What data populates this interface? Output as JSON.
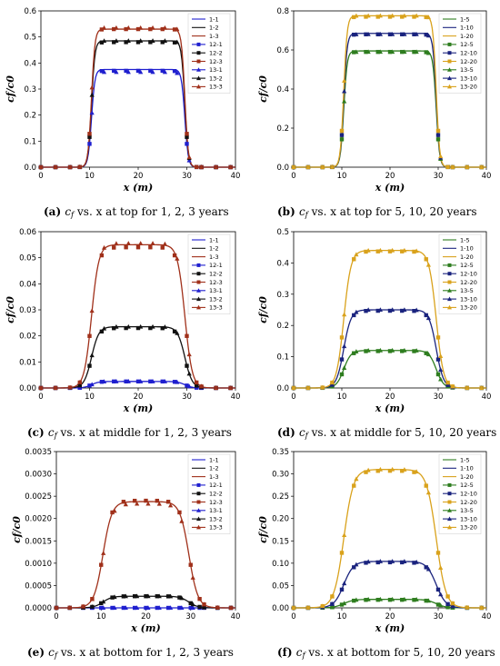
{
  "chart_data": [
    {
      "type": "line",
      "caption": {
        "tag": "(a)",
        "body": "c",
        "sub": "f",
        "rest": " vs. x at top for 1, 2, 3 years"
      },
      "xlabel": "x (m)",
      "ylabel": "cf/c0",
      "xlim": [
        0,
        40
      ],
      "ylim": [
        0,
        0.6
      ],
      "xticks": [
        "0",
        "10",
        "20",
        "30",
        "40"
      ],
      "yticks": [
        "0.0",
        "0.1",
        "0.2",
        "0.3",
        "0.4",
        "0.5",
        "0.6"
      ],
      "legend_position": "top-right",
      "plateau_levels": [
        0.37,
        0.485,
        0.53
      ],
      "series": [
        {
          "name": "1-1",
          "color": "#1f1fcf",
          "kind": "line",
          "level": 0.375
        },
        {
          "name": "1-2",
          "color": "#111111",
          "kind": "line",
          "level": 0.485
        },
        {
          "name": "1-3",
          "color": "#a0301a",
          "kind": "line",
          "level": 0.53
        },
        {
          "name": "12-1",
          "color": "#1f1fcf",
          "kind": "square",
          "level": 0.37
        },
        {
          "name": "12-2",
          "color": "#111111",
          "kind": "square",
          "level": 0.48
        },
        {
          "name": "12-3",
          "color": "#a0301a",
          "kind": "square",
          "level": 0.53
        },
        {
          "name": "13-1",
          "color": "#1f1fcf",
          "kind": "triangle",
          "level": 0.365
        },
        {
          "name": "13-2",
          "color": "#111111",
          "kind": "triangle",
          "level": 0.485
        },
        {
          "name": "13-3",
          "color": "#a0301a",
          "kind": "triangle",
          "level": 0.535
        }
      ]
    },
    {
      "type": "line",
      "caption": {
        "tag": "(b)",
        "body": "c",
        "sub": "f",
        "rest": " vs. x at top for 5, 10, 20 years"
      },
      "xlabel": "x (m)",
      "ylabel": "cf/c0",
      "xlim": [
        0,
        40
      ],
      "ylim": [
        0,
        0.8
      ],
      "xticks": [
        "0",
        "10",
        "20",
        "30",
        "40"
      ],
      "yticks": [
        "0.0",
        "0.2",
        "0.4",
        "0.6",
        "0.8"
      ],
      "legend_position": "top-right",
      "series": [
        {
          "name": "1-5",
          "color": "#2e7d1f",
          "kind": "line",
          "level": 0.595
        },
        {
          "name": "1-10",
          "color": "#1a237e",
          "kind": "line",
          "level": 0.685
        },
        {
          "name": "1-20",
          "color": "#d9a21c",
          "kind": "line",
          "level": 0.775
        },
        {
          "name": "12-5",
          "color": "#2e7d1f",
          "kind": "square",
          "level": 0.59
        },
        {
          "name": "12-10",
          "color": "#1a237e",
          "kind": "square",
          "level": 0.68
        },
        {
          "name": "12-20",
          "color": "#d9a21c",
          "kind": "square",
          "level": 0.77
        },
        {
          "name": "13-5",
          "color": "#2e7d1f",
          "kind": "triangle",
          "level": 0.59
        },
        {
          "name": "13-10",
          "color": "#1a237e",
          "kind": "triangle",
          "level": 0.68
        },
        {
          "name": "13-20",
          "color": "#d9a21c",
          "kind": "triangle",
          "level": 0.775
        }
      ]
    },
    {
      "type": "line",
      "caption": {
        "tag": "(c)",
        "body": "c",
        "sub": "f",
        "rest": " vs. x at middle for 1, 2, 3 years"
      },
      "xlabel": "x (m)",
      "ylabel": "cf/c0",
      "xlim": [
        0,
        40
      ],
      "ylim": [
        0,
        0.06
      ],
      "xticks": [
        "0",
        "10",
        "20",
        "30",
        "40"
      ],
      "yticks": [
        "0.00",
        "0.01",
        "0.02",
        "0.03",
        "0.04",
        "0.05",
        "0.06"
      ],
      "legend_position": "top-right",
      "series": [
        {
          "name": "1-1",
          "color": "#1f1fcf",
          "kind": "line",
          "level": 0.0025
        },
        {
          "name": "1-2",
          "color": "#111111",
          "kind": "line",
          "level": 0.0235
        },
        {
          "name": "1-3",
          "color": "#a0301a",
          "kind": "line",
          "level": 0.055
        },
        {
          "name": "12-1",
          "color": "#1f1fcf",
          "kind": "square",
          "level": 0.0025
        },
        {
          "name": "12-2",
          "color": "#111111",
          "kind": "square",
          "level": 0.023
        },
        {
          "name": "12-3",
          "color": "#a0301a",
          "kind": "square",
          "level": 0.054
        },
        {
          "name": "13-1",
          "color": "#1f1fcf",
          "kind": "triangle",
          "level": 0.0025
        },
        {
          "name": "13-2",
          "color": "#111111",
          "kind": "triangle",
          "level": 0.0235
        },
        {
          "name": "13-3",
          "color": "#a0301a",
          "kind": "triangle",
          "level": 0.0555
        }
      ]
    },
    {
      "type": "line",
      "caption": {
        "tag": "(d)",
        "body": "c",
        "sub": "f",
        "rest": " vs. x at middle for 5, 10, 20 years"
      },
      "xlabel": "x (m)",
      "ylabel": "cf/c0",
      "xlim": [
        0,
        40
      ],
      "ylim": [
        0,
        0.5
      ],
      "xticks": [
        "0",
        "10",
        "20",
        "30",
        "40"
      ],
      "yticks": [
        "0.0",
        "0.1",
        "0.2",
        "0.3",
        "0.4",
        "0.5"
      ],
      "legend_position": "top-right",
      "series": [
        {
          "name": "1-5",
          "color": "#2e7d1f",
          "kind": "line",
          "level": 0.12
        },
        {
          "name": "1-10",
          "color": "#1a237e",
          "kind": "line",
          "level": 0.25
        },
        {
          "name": "1-20",
          "color": "#d9a21c",
          "kind": "line",
          "level": 0.44
        },
        {
          "name": "12-5",
          "color": "#2e7d1f",
          "kind": "square",
          "level": 0.118
        },
        {
          "name": "12-10",
          "color": "#1a237e",
          "kind": "square",
          "level": 0.247
        },
        {
          "name": "12-20",
          "color": "#d9a21c",
          "kind": "square",
          "level": 0.437
        },
        {
          "name": "13-5",
          "color": "#2e7d1f",
          "kind": "triangle",
          "level": 0.12
        },
        {
          "name": "13-10",
          "color": "#1a237e",
          "kind": "triangle",
          "level": 0.25
        },
        {
          "name": "13-20",
          "color": "#d9a21c",
          "kind": "triangle",
          "level": 0.44
        }
      ]
    },
    {
      "type": "line",
      "caption": {
        "tag": "(e)",
        "body": "c",
        "sub": "f",
        "rest": " vs. x at bottom for 1, 2, 3 years"
      },
      "xlabel": "x (m)",
      "ylabel": "cf/c0",
      "xlim": [
        0,
        40
      ],
      "ylim": [
        0,
        0.0035
      ],
      "xticks": [
        "0",
        "10",
        "20",
        "30",
        "40"
      ],
      "yticks": [
        "0.0000",
        "0.0005",
        "0.0010",
        "0.0015",
        "0.0020",
        "0.0025",
        "0.0030",
        "0.0035"
      ],
      "legend_position": "top-right",
      "series": [
        {
          "name": "1-1",
          "color": "#1f1fcf",
          "kind": "line",
          "level": 0.0
        },
        {
          "name": "1-2",
          "color": "#111111",
          "kind": "line",
          "level": 0.00026
        },
        {
          "name": "1-3",
          "color": "#a0301a",
          "kind": "line",
          "level": 0.00238
        },
        {
          "name": "12-1",
          "color": "#1f1fcf",
          "kind": "square",
          "level": 0.0
        },
        {
          "name": "12-2",
          "color": "#111111",
          "kind": "square",
          "level": 0.00026
        },
        {
          "name": "12-3",
          "color": "#a0301a",
          "kind": "square",
          "level": 0.0024
        },
        {
          "name": "13-1",
          "color": "#1f1fcf",
          "kind": "triangle",
          "level": 0.0
        },
        {
          "name": "13-2",
          "color": "#111111",
          "kind": "triangle",
          "level": 0.00026
        },
        {
          "name": "13-3",
          "color": "#a0301a",
          "kind": "triangle",
          "level": 0.00233
        }
      ]
    },
    {
      "type": "line",
      "caption": {
        "tag": "(f)",
        "body": "c",
        "sub": "f",
        "rest": " vs. x at bottom for 5, 10, 20 years"
      },
      "xlabel": "x (m)",
      "ylabel": "cf/c0",
      "xlim": [
        0,
        40
      ],
      "ylim": [
        0,
        0.35
      ],
      "xticks": [
        "0",
        "10",
        "20",
        "30",
        "40"
      ],
      "yticks": [
        "0.00",
        "0.05",
        "0.10",
        "0.15",
        "0.20",
        "0.25",
        "0.30",
        "0.35"
      ],
      "legend_position": "top-right",
      "series": [
        {
          "name": "1-5",
          "color": "#2e7d1f",
          "kind": "line",
          "level": 0.019
        },
        {
          "name": "1-10",
          "color": "#1a237e",
          "kind": "line",
          "level": 0.104
        },
        {
          "name": "1-20",
          "color": "#d9a21c",
          "kind": "line",
          "level": 0.31
        },
        {
          "name": "12-5",
          "color": "#2e7d1f",
          "kind": "square",
          "level": 0.018
        },
        {
          "name": "12-10",
          "color": "#1a237e",
          "kind": "square",
          "level": 0.102
        },
        {
          "name": "12-20",
          "color": "#d9a21c",
          "kind": "square",
          "level": 0.307
        },
        {
          "name": "13-5",
          "color": "#2e7d1f",
          "kind": "triangle",
          "level": 0.019
        },
        {
          "name": "13-10",
          "color": "#1a237e",
          "kind": "triangle",
          "level": 0.104
        },
        {
          "name": "13-20",
          "color": "#d9a21c",
          "kind": "triangle",
          "level": 0.31
        }
      ]
    }
  ]
}
